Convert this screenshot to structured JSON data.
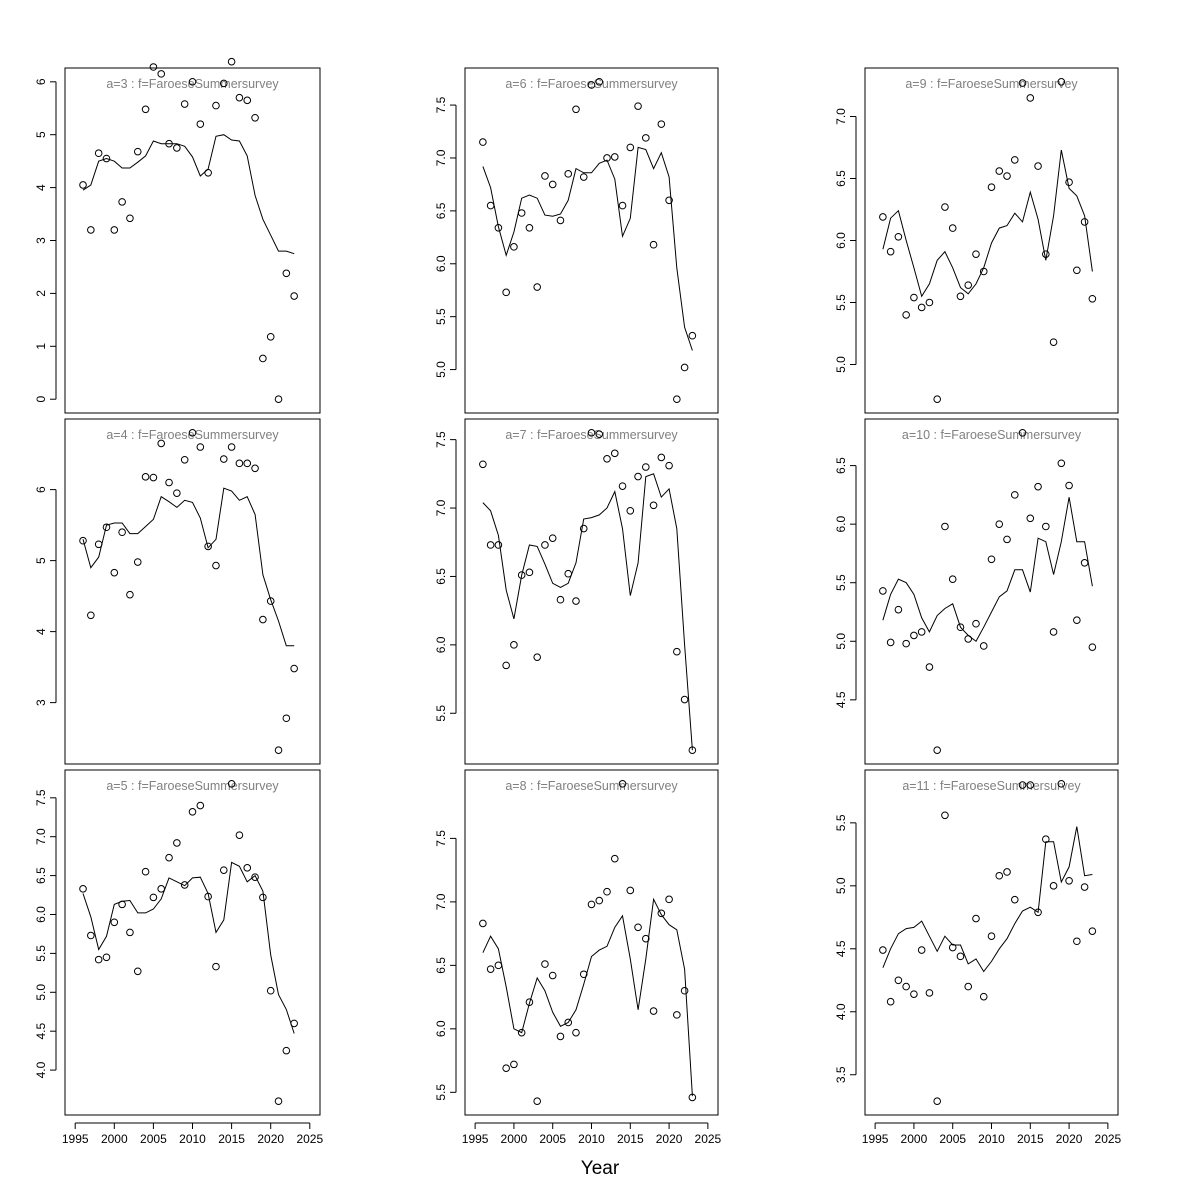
{
  "figure": {
    "xlabel": "Year"
  },
  "chart_data": [
    {
      "type": "scatter",
      "title": "a=3  :  f=FaroeseSummersurvey",
      "column": 1,
      "xlim": [
        1995,
        2025
      ],
      "ylim": [
        0,
        6
      ],
      "x": [
        1996,
        1997,
        1998,
        1999,
        2000,
        2001,
        2002,
        2003,
        2004,
        2005,
        2006,
        2007,
        2008,
        2009,
        2010,
        2011,
        2012,
        2013,
        2014,
        2015,
        2016,
        2017,
        2018,
        2019,
        2020,
        2021,
        2022,
        2023
      ],
      "observed": [
        4.05,
        3.2,
        4.65,
        4.55,
        3.2,
        3.73,
        3.42,
        4.68,
        5.48,
        6.28,
        6.15,
        4.83,
        4.75,
        5.58,
        6.0,
        5.2,
        4.28,
        5.55,
        5.97,
        6.38,
        5.7,
        5.65,
        5.32,
        0.77,
        1.18,
        0.0,
        2.38,
        1.95
      ],
      "fitted": [
        3.95,
        4.05,
        4.5,
        4.55,
        4.5,
        4.37,
        4.37,
        4.48,
        4.6,
        4.88,
        4.83,
        4.83,
        4.83,
        4.78,
        4.58,
        4.22,
        4.35,
        4.97,
        5.0,
        4.9,
        4.88,
        4.6,
        3.85,
        3.4,
        3.1,
        2.8,
        2.8,
        2.75
      ]
    },
    {
      "type": "scatter",
      "title": "a=4  :  f=FaroeseSummersurvey",
      "column": 1,
      "xlim": [
        1995,
        2025
      ],
      "ylim": [
        2.33,
        6.8
      ],
      "x": [
        1996,
        1997,
        1998,
        1999,
        2000,
        2001,
        2002,
        2003,
        2004,
        2005,
        2006,
        2007,
        2008,
        2009,
        2010,
        2011,
        2012,
        2013,
        2014,
        2015,
        2016,
        2017,
        2018,
        2019,
        2020,
        2021,
        2022,
        2023
      ],
      "observed": [
        5.28,
        4.23,
        5.23,
        5.47,
        4.83,
        5.4,
        4.52,
        4.98,
        6.18,
        6.17,
        6.65,
        6.1,
        5.95,
        6.42,
        6.8,
        6.6,
        5.2,
        4.93,
        6.43,
        6.6,
        6.37,
        6.37,
        6.3,
        4.17,
        4.43,
        2.33,
        2.78,
        3.48
      ],
      "fitted": [
        5.3,
        4.9,
        5.05,
        5.5,
        5.53,
        5.53,
        5.38,
        5.38,
        5.48,
        5.58,
        5.9,
        5.83,
        5.75,
        5.85,
        5.82,
        5.6,
        5.18,
        5.3,
        6.02,
        5.98,
        5.85,
        5.9,
        5.65,
        4.8,
        4.45,
        4.15,
        3.8,
        3.8
      ]
    },
    {
      "type": "scatter",
      "title": "a=5  :  f=FaroeseSummersurvey",
      "column": 1,
      "xlim": [
        1995,
        2025
      ],
      "ylim": [
        3.6,
        7.68
      ],
      "x": [
        1996,
        1997,
        1998,
        1999,
        2000,
        2001,
        2002,
        2003,
        2004,
        2005,
        2006,
        2007,
        2008,
        2009,
        2010,
        2011,
        2012,
        2013,
        2014,
        2015,
        2016,
        2017,
        2018,
        2019,
        2020,
        2021,
        2022,
        2023
      ],
      "observed": [
        6.33,
        5.73,
        5.42,
        5.45,
        5.9,
        6.13,
        5.77,
        5.27,
        6.55,
        6.22,
        6.33,
        6.73,
        6.92,
        6.38,
        7.32,
        7.4,
        6.23,
        5.33,
        6.57,
        7.68,
        7.02,
        6.6,
        6.48,
        6.22,
        5.02,
        3.6,
        4.25,
        4.6
      ],
      "fitted": [
        6.27,
        5.97,
        5.55,
        5.72,
        6.13,
        6.17,
        6.18,
        6.02,
        6.02,
        6.07,
        6.2,
        6.47,
        6.42,
        6.37,
        6.47,
        6.48,
        6.27,
        5.77,
        5.93,
        6.67,
        6.62,
        6.42,
        6.5,
        6.3,
        5.48,
        4.97,
        4.78,
        4.47
      ]
    },
    {
      "type": "scatter",
      "title": "a=6  :  f=FaroeseSummersurvey",
      "column": 2,
      "xlim": [
        1995,
        2025
      ],
      "ylim": [
        4.72,
        7.72
      ],
      "x": [
        1996,
        1997,
        1998,
        1999,
        2000,
        2001,
        2002,
        2003,
        2004,
        2005,
        2006,
        2007,
        2008,
        2009,
        2010,
        2011,
        2012,
        2013,
        2014,
        2015,
        2016,
        2017,
        2018,
        2019,
        2020,
        2021,
        2022,
        2023
      ],
      "observed": [
        7.15,
        6.55,
        6.34,
        5.73,
        6.16,
        6.48,
        6.34,
        5.78,
        6.83,
        6.75,
        6.41,
        6.85,
        7.46,
        6.82,
        7.69,
        7.72,
        7.0,
        7.01,
        6.55,
        7.1,
        7.49,
        7.19,
        6.18,
        7.32,
        6.6,
        4.72,
        5.02,
        5.32
      ],
      "fitted": [
        6.92,
        6.72,
        6.35,
        6.08,
        6.3,
        6.62,
        6.65,
        6.62,
        6.46,
        6.45,
        6.47,
        6.6,
        6.9,
        6.86,
        6.86,
        6.95,
        6.98,
        6.8,
        6.26,
        6.43,
        7.1,
        7.08,
        6.9,
        7.05,
        6.82,
        5.96,
        5.4,
        5.18
      ]
    },
    {
      "type": "scatter",
      "title": "a=7  :  f=FaroeseSummersurvey",
      "column": 2,
      "xlim": [
        1995,
        2025
      ],
      "ylim": [
        5.23,
        7.55
      ],
      "x": [
        1996,
        1997,
        1998,
        1999,
        2000,
        2001,
        2002,
        2003,
        2004,
        2005,
        2006,
        2007,
        2008,
        2009,
        2010,
        2011,
        2012,
        2013,
        2014,
        2015,
        2016,
        2017,
        2018,
        2019,
        2020,
        2021,
        2022,
        2023
      ],
      "observed": [
        7.32,
        6.73,
        6.73,
        5.85,
        6.0,
        6.51,
        6.53,
        5.91,
        6.73,
        6.78,
        6.33,
        6.52,
        6.32,
        6.85,
        7.55,
        7.54,
        7.36,
        7.4,
        7.16,
        6.98,
        7.23,
        7.3,
        7.02,
        7.37,
        7.31,
        5.95,
        5.6,
        5.23
      ],
      "fitted": [
        7.04,
        6.98,
        6.8,
        6.4,
        6.19,
        6.51,
        6.73,
        6.72,
        6.59,
        6.45,
        6.42,
        6.45,
        6.6,
        6.92,
        6.93,
        6.95,
        7.0,
        7.12,
        6.85,
        6.36,
        6.6,
        7.23,
        7.25,
        7.08,
        7.14,
        6.85,
        6.0,
        5.23
      ]
    },
    {
      "type": "scatter",
      "title": "a=8  :  f=FaroeseSummersurvey",
      "column": 2,
      "xlim": [
        1995,
        2025
      ],
      "ylim": [
        5.43,
        7.93
      ],
      "x": [
        1996,
        1997,
        1998,
        1999,
        2000,
        2001,
        2002,
        2003,
        2004,
        2005,
        2006,
        2007,
        2008,
        2009,
        2010,
        2011,
        2012,
        2013,
        2014,
        2015,
        2016,
        2017,
        2018,
        2019,
        2020,
        2021,
        2022,
        2023
      ],
      "observed": [
        6.83,
        6.47,
        6.5,
        5.69,
        5.72,
        5.97,
        6.21,
        5.43,
        6.51,
        6.42,
        5.94,
        6.05,
        5.97,
        6.43,
        6.98,
        7.01,
        7.08,
        7.34,
        7.93,
        7.09,
        6.8,
        6.71,
        6.14,
        6.91,
        7.02,
        6.11,
        6.3,
        5.46
      ],
      "fitted": [
        6.6,
        6.73,
        6.63,
        6.33,
        6.0,
        5.97,
        6.2,
        6.4,
        6.3,
        6.13,
        6.02,
        6.05,
        6.15,
        6.35,
        6.57,
        6.62,
        6.65,
        6.8,
        6.89,
        6.55,
        6.15,
        6.55,
        7.02,
        6.9,
        6.82,
        6.78,
        6.47,
        5.47
      ]
    },
    {
      "type": "scatter",
      "title": "a=9  :  f=FaroeseSummersurvey",
      "column": 3,
      "xlim": [
        1995,
        2025
      ],
      "ylim": [
        4.72,
        7.28
      ],
      "x": [
        1996,
        1997,
        1998,
        1999,
        2000,
        2001,
        2002,
        2003,
        2004,
        2005,
        2006,
        2007,
        2008,
        2009,
        2010,
        2011,
        2012,
        2013,
        2014,
        2015,
        2016,
        2017,
        2018,
        2019,
        2020,
        2021,
        2022,
        2023
      ],
      "observed": [
        6.19,
        5.91,
        6.03,
        5.4,
        5.54,
        5.46,
        5.5,
        4.72,
        6.27,
        6.1,
        5.55,
        5.64,
        5.89,
        5.75,
        6.43,
        6.56,
        6.52,
        6.65,
        7.27,
        7.15,
        6.6,
        5.89,
        5.18,
        7.28,
        6.47,
        5.76,
        6.15,
        5.53
      ],
      "fitted": [
        5.93,
        6.18,
        6.24,
        6.0,
        5.78,
        5.55,
        5.65,
        5.84,
        5.91,
        5.78,
        5.62,
        5.57,
        5.65,
        5.78,
        5.98,
        6.1,
        6.12,
        6.22,
        6.15,
        6.39,
        6.17,
        5.84,
        6.2,
        6.73,
        6.42,
        6.36,
        6.2,
        5.75
      ]
    },
    {
      "type": "scatter",
      "title": "a=10  :  f=FaroeseSummersurvey",
      "column": 3,
      "xlim": [
        1995,
        2025
      ],
      "ylim": [
        4.07,
        6.78
      ],
      "x": [
        1996,
        1997,
        1998,
        1999,
        2000,
        2001,
        2002,
        2003,
        2004,
        2005,
        2006,
        2007,
        2008,
        2009,
        2010,
        2011,
        2012,
        2013,
        2014,
        2015,
        2016,
        2017,
        2018,
        2019,
        2020,
        2021,
        2022,
        2023
      ],
      "observed": [
        5.43,
        4.99,
        5.27,
        4.98,
        5.05,
        5.08,
        4.78,
        4.07,
        5.98,
        5.53,
        5.12,
        5.02,
        5.15,
        4.96,
        5.7,
        6.0,
        5.87,
        6.25,
        6.78,
        6.05,
        6.32,
        5.98,
        5.08,
        6.52,
        6.33,
        5.18,
        5.67,
        4.95
      ],
      "fitted": [
        5.18,
        5.4,
        5.53,
        5.5,
        5.4,
        5.2,
        5.08,
        5.22,
        5.28,
        5.32,
        5.12,
        5.05,
        5.0,
        5.12,
        5.25,
        5.38,
        5.43,
        5.61,
        5.61,
        5.42,
        5.88,
        5.85,
        5.57,
        5.85,
        6.23,
        5.85,
        5.85,
        5.47
      ]
    },
    {
      "type": "scatter",
      "title": "a=11  :  f=FaroeseSummersurvey",
      "column": 3,
      "xlim": [
        1995,
        2025
      ],
      "ylim": [
        3.29,
        5.81
      ],
      "x": [
        1996,
        1997,
        1998,
        1999,
        2000,
        2001,
        2002,
        2003,
        2004,
        2005,
        2006,
        2007,
        2008,
        2009,
        2010,
        2011,
        2012,
        2013,
        2014,
        2015,
        2016,
        2017,
        2018,
        2019,
        2020,
        2021,
        2022,
        2023
      ],
      "observed": [
        4.49,
        4.08,
        4.25,
        4.2,
        4.14,
        4.49,
        4.15,
        3.29,
        5.56,
        4.51,
        4.44,
        4.2,
        4.74,
        4.12,
        4.6,
        5.08,
        5.11,
        4.89,
        5.8,
        5.8,
        4.79,
        5.37,
        5.0,
        5.81,
        5.04,
        4.56,
        4.99,
        4.64
      ],
      "fitted": [
        4.35,
        4.5,
        4.62,
        4.66,
        4.67,
        4.72,
        4.6,
        4.48,
        4.6,
        4.53,
        4.53,
        4.38,
        4.42,
        4.32,
        4.4,
        4.5,
        4.58,
        4.7,
        4.8,
        4.83,
        4.79,
        5.35,
        5.35,
        5.03,
        5.15,
        5.47,
        5.08,
        5.09
      ]
    }
  ]
}
